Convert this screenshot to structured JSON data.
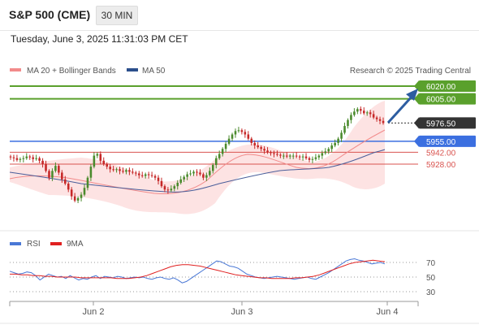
{
  "header": {
    "title": "S&P 500 (CME)",
    "timeframe": "30 MIN",
    "timestamp": "Tuesday, June 3, 2025 11:31:03 PM CET"
  },
  "legend": {
    "ma20": {
      "label": "MA 20 + Bollinger Bands",
      "color": "#f28b8b"
    },
    "ma50": {
      "label": "MA 50",
      "color": "#2b4f8c"
    },
    "research": "Research © 2025 Trading Central"
  },
  "colors": {
    "bull_candle": "#4a8a2c",
    "bear_candle": "#c62828",
    "bollinger_fill": "#fde3e3",
    "target_arrow": "#2d5da1",
    "rsi_line": "#4a78d6",
    "rsi_ma_line": "#e02020"
  },
  "price_levels": [
    {
      "value": "6020.00",
      "kind": "resistance",
      "color": "#5aa02c"
    },
    {
      "value": "6005.00",
      "kind": "resistance",
      "color": "#5aa02c"
    },
    {
      "value": "5976.50",
      "kind": "last",
      "color": "#333333"
    },
    {
      "value": "5955.00",
      "kind": "pivot",
      "color": "#3b6fe0"
    },
    {
      "value": "5942.00",
      "kind": "support",
      "color": "#d9534f"
    },
    {
      "value": "5928.00",
      "kind": "support",
      "color": "#d9534f"
    }
  ],
  "rsi_panel": {
    "rsi_label": "RSI",
    "ma_label": "9MA",
    "levels": [
      "70",
      "50",
      "30"
    ]
  },
  "x_axis": [
    "Jun 2",
    "Jun 3",
    "Jun 4"
  ],
  "chart_data": {
    "type": "candlestick",
    "title": "S&P 500 (CME)",
    "interval": "30 MIN",
    "levels": [
      6020.0,
      6005.0,
      5976.5,
      5955.0,
      5942.0,
      5928.0
    ],
    "y_range": [
      5870,
      6030
    ],
    "rsi_levels": [
      70,
      50,
      30
    ],
    "x_ticks": [
      "Jun 2",
      "Jun 3",
      "Jun 4"
    ],
    "close_path": [
      5936,
      5935,
      5933,
      5934,
      5935,
      5937,
      5936,
      5934,
      5935,
      5932,
      5928,
      5920,
      5912,
      5920,
      5926,
      5918,
      5910,
      5905,
      5898,
      5890,
      5885,
      5888,
      5892,
      5900,
      5912,
      5925,
      5938,
      5940,
      5932,
      5928,
      5925,
      5922,
      5921,
      5922,
      5920,
      5919,
      5921,
      5919,
      5918,
      5917,
      5915,
      5914,
      5916,
      5915,
      5914,
      5912,
      5908,
      5902,
      5898,
      5897,
      5899,
      5902,
      5906,
      5910,
      5913,
      5916,
      5917,
      5919,
      5918,
      5916,
      5912,
      5915,
      5920,
      5927,
      5935,
      5940,
      5946,
      5952,
      5958,
      5963,
      5967,
      5968,
      5966,
      5963,
      5958,
      5953,
      5950,
      5948,
      5946,
      5944,
      5942,
      5941,
      5940,
      5939,
      5938,
      5938,
      5937,
      5938,
      5938,
      5937,
      5936,
      5937,
      5935,
      5933,
      5934,
      5936,
      5938,
      5941,
      5943,
      5946,
      5950,
      5953,
      5958,
      5965,
      5973,
      5980,
      5986,
      5990,
      5993,
      5991,
      5988,
      5989,
      5987,
      5983,
      5981,
      5979,
      5976.5
    ],
    "rsi_path": [
      58,
      56,
      54,
      55,
      57,
      56,
      52,
      46,
      50,
      54,
      52,
      50,
      51,
      48,
      52,
      49,
      46,
      48,
      47,
      50,
      52,
      48,
      51,
      50,
      49,
      51,
      50,
      48,
      49,
      50,
      49,
      50,
      48,
      47,
      49,
      50,
      48,
      47,
      49,
      46,
      42,
      44,
      48,
      52,
      56,
      60,
      64,
      68,
      72,
      71,
      68,
      65,
      64,
      62,
      58,
      54,
      52,
      50,
      49,
      48,
      49,
      50,
      51,
      50,
      49,
      48,
      47,
      48,
      49,
      50,
      48,
      47,
      50,
      53,
      56,
      60,
      64,
      68,
      72,
      74,
      75,
      73,
      72,
      70,
      68,
      69,
      70,
      68
    ],
    "rsi_ma_path": [
      54,
      54,
      53,
      53,
      52,
      52,
      51,
      51,
      50,
      50,
      50,
      50,
      49,
      49,
      49,
      49,
      49,
      49,
      48,
      48,
      48,
      49,
      50,
      52,
      55,
      58,
      61,
      64,
      66,
      67,
      67,
      66,
      65,
      63,
      61,
      59,
      57,
      55,
      53,
      52,
      51,
      50,
      49,
      49,
      48,
      48,
      48,
      48,
      49,
      49,
      50,
      51,
      53,
      56,
      59,
      62,
      65,
      68,
      70,
      71,
      72,
      73,
      72,
      71
    ]
  }
}
